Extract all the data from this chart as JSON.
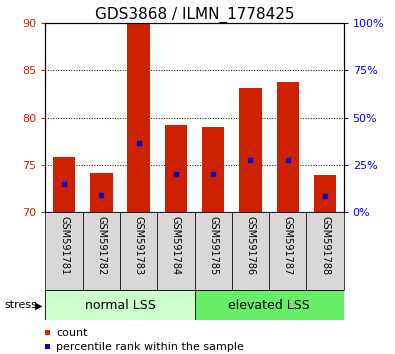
{
  "title": "GDS3868 / ILMN_1778425",
  "samples": [
    "GSM591781",
    "GSM591782",
    "GSM591783",
    "GSM591784",
    "GSM591785",
    "GSM591786",
    "GSM591787",
    "GSM591788"
  ],
  "bar_values": [
    75.8,
    74.2,
    90.0,
    79.2,
    79.0,
    83.1,
    83.8,
    73.9
  ],
  "bar_base": 70.0,
  "percentile_values": [
    73.0,
    71.8,
    77.3,
    74.1,
    74.1,
    75.5,
    75.5,
    71.7
  ],
  "ylim": [
    70,
    90
  ],
  "yticks_left": [
    70,
    75,
    80,
    85,
    90
  ],
  "yticks_right": [
    0,
    25,
    50,
    75,
    100
  ],
  "ytick_right_labels": [
    "0%",
    "25%",
    "50%",
    "75%",
    "100%"
  ],
  "y2lim": [
    0,
    100
  ],
  "bar_color": "#cc2200",
  "percentile_color": "#0000cc",
  "group1_label": "normal LSS",
  "group2_label": "elevated LSS",
  "group1_indices": [
    0,
    1,
    2,
    3
  ],
  "group2_indices": [
    4,
    5,
    6,
    7
  ],
  "group1_color": "#ccffcc",
  "group2_color": "#66ee66",
  "stress_label": "stress",
  "legend_count": "count",
  "legend_percentile": "percentile rank within the sample",
  "background_color": "#ffffff",
  "bar_width": 0.6,
  "title_fontsize": 11,
  "label_fontsize": 7,
  "group_fontsize": 9,
  "legend_fontsize": 8
}
